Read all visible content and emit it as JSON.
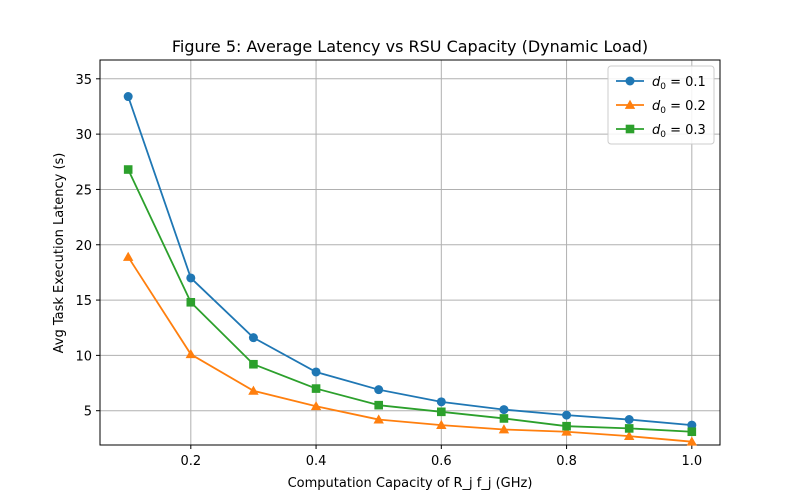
{
  "chart_data": {
    "type": "line",
    "title": "Figure 5: Average Latency vs RSU Capacity (Dynamic Load)",
    "xlabel": "Computation Capacity of R_j  f_j (GHz)",
    "ylabel": "Avg Task Execution Latency (s)",
    "xlim": [
      0.055,
      1.045
    ],
    "ylim": [
      1.9,
      36.7
    ],
    "xticks": [
      0.2,
      0.4,
      0.6,
      0.8,
      1.0
    ],
    "xtick_labels": [
      "0.2",
      "0.4",
      "0.6",
      "0.8",
      "1.0"
    ],
    "yticks": [
      5,
      10,
      15,
      20,
      25,
      30,
      35
    ],
    "ytick_labels": [
      "5",
      "10",
      "15",
      "20",
      "25",
      "30",
      "35"
    ],
    "grid": true,
    "legend_position": "top-right",
    "x": [
      0.1,
      0.2,
      0.3,
      0.4,
      0.5,
      0.6,
      0.7,
      0.8,
      0.9,
      1.0
    ],
    "series": [
      {
        "name": "d_0 = 0.1",
        "legend_main": "d",
        "legend_sub": "0",
        "legend_rest": " = 0.1",
        "color": "#1f77b4",
        "marker": "circle",
        "values": [
          33.4,
          17.0,
          11.6,
          8.5,
          6.9,
          5.8,
          5.1,
          4.6,
          4.2,
          3.7
        ]
      },
      {
        "name": "d_0 = 0.2",
        "legend_main": "d",
        "legend_sub": "0",
        "legend_rest": " = 0.2",
        "color": "#ff7f0e",
        "marker": "triangle",
        "values": [
          18.9,
          10.1,
          6.8,
          5.4,
          4.2,
          3.7,
          3.3,
          3.1,
          2.7,
          2.2
        ]
      },
      {
        "name": "d_0 = 0.3",
        "legend_main": "d",
        "legend_sub": "0",
        "legend_rest": " = 0.3",
        "color": "#2ca02c",
        "marker": "square",
        "values": [
          26.8,
          14.8,
          9.2,
          7.0,
          5.5,
          4.9,
          4.3,
          3.6,
          3.4,
          3.1
        ]
      }
    ]
  }
}
